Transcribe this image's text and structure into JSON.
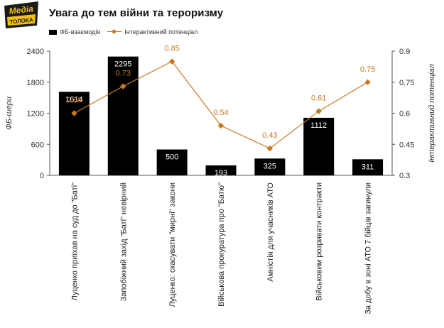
{
  "logo": {
    "line1": "Медіа",
    "line2": "ТОЛОКА"
  },
  "chart_data": {
    "type": "bar",
    "title": "Увага до тем війни та тероризму",
    "categories": [
      "Луценко приїхав на суд до \"Баті\"",
      "Запобіжний захід \"Баті\" невірний",
      "Луценко: скасувати \"мирні\" закони",
      "Військова прокуратура про \"Батю\"",
      "Амністія для учасників АТО",
      "Військовим розривати контракти",
      "За добу в зоні АТО 7 бійців загинули"
    ],
    "series": [
      {
        "name": "ФБ-взаємодія",
        "type": "bar",
        "axis": "left",
        "color": "#000000",
        "values": [
          1614,
          2295,
          500,
          193,
          325,
          1112,
          311
        ],
        "labels": [
          "1614",
          "2295",
          "500",
          "193",
          "325",
          "1112",
          "311"
        ]
      },
      {
        "name": "Інтерактивний потенціал",
        "type": "line",
        "axis": "right",
        "color": "#c87a20",
        "values": [
          0.6,
          0.73,
          0.85,
          0.54,
          0.43,
          0.61,
          0.75
        ],
        "labels": [
          "0.60",
          "0.73",
          "0.85",
          "0.54",
          "0.43",
          "0.61",
          "0.75"
        ]
      }
    ],
    "ylabel": "ФБ-шери",
    "y2label": "Інтерактивний потенціал",
    "ylim": [
      0,
      2400
    ],
    "y2lim": [
      0.3,
      0.9
    ],
    "yticks": [
      0,
      600,
      1200,
      1800,
      2400
    ],
    "ytick_labels": [
      "0",
      "600",
      "1200",
      "1800",
      "2400"
    ],
    "y2ticks": [
      0.3,
      0.45,
      0.6,
      0.75,
      0.9
    ],
    "y2tick_labels": [
      "0.3",
      "0.45",
      "0.6",
      "0.75",
      "0.9"
    ],
    "legend_position": "top-left",
    "grid": false
  }
}
